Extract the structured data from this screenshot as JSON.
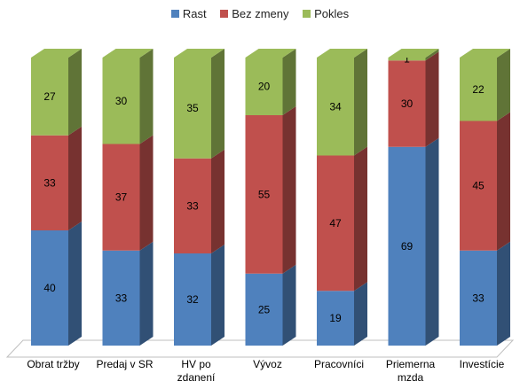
{
  "chart_data": {
    "type": "bar",
    "stacked": true,
    "three_d": true,
    "categories": [
      [
        "Obrat tržby"
      ],
      [
        "Predaj v SR"
      ],
      [
        "HV po",
        "zdanení"
      ],
      [
        "Vývoz"
      ],
      [
        "Pracovníci"
      ],
      [
        "Priemerna",
        "mzda"
      ],
      [
        "Investície"
      ]
    ],
    "series": [
      {
        "name": "Rast",
        "color": "#4F81BD",
        "values": [
          40,
          33,
          32,
          25,
          19,
          69,
          33
        ]
      },
      {
        "name": "Bez zmeny",
        "color": "#C0504D",
        "values": [
          33,
          37,
          33,
          55,
          47,
          30,
          45
        ]
      },
      {
        "name": "Pokles",
        "color": "#9BBB59",
        "values": [
          27,
          30,
          35,
          20,
          34,
          1,
          22
        ]
      }
    ],
    "ylim": [
      0,
      100
    ],
    "legend_position": "top",
    "data_labels": true,
    "grid": false
  }
}
